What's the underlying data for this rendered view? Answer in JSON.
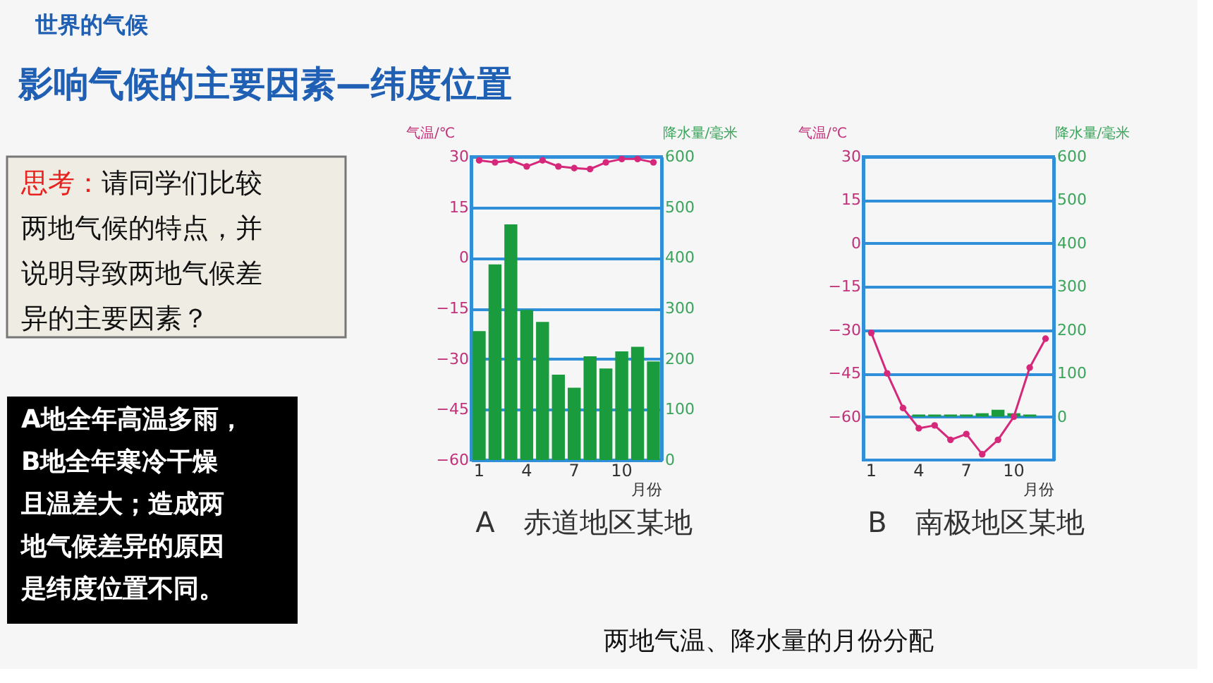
{
  "chart_data": [
    {
      "type": "other",
      "title": "世界的气候",
      "subtitle": "影响气候的主要因素—纬度位置",
      "annotations": [
        "思考：",
        "请同学们比较",
        "两地气候的特点，并",
        "说明导致两地气候差",
        "异的主要因素？"
      ]
    },
    {
      "type": "other",
      "annotations": [
        "A地全年高温多雨，",
        "B地全年寒冷干燥",
        "且温差大；造成两",
        "地气候差异的原因",
        "是纬度位置不同。"
      ]
    },
    {
      "type": "bar",
      "categories": [
        "1",
        null,
        null,
        "4",
        null,
        null,
        "7",
        null,
        null,
        "10",
        null,
        null
      ],
      "xlabel": "月份",
      "ylabel": "气温/℃",
      "y2label": "降水量/毫米",
      "ylim": [
        -60,
        30
      ],
      "yticks": [
        -60,
        -45,
        -30,
        -15,
        0,
        15,
        30
      ],
      "y2lim": [
        0,
        600
      ],
      "y2ticks": [
        0,
        100,
        200,
        300,
        400,
        500,
        600
      ],
      "grid": "y",
      "marker": "circle",
      "annotations": [
        "A　赤道地区某地"
      ],
      "series": [
        {
          "type": "bar",
          "axis": "y2",
          "color": "#1a9c3e",
          "values": [
            255,
            387,
            466,
            297,
            273,
            169,
            143,
            205,
            181,
            215,
            224,
            195
          ]
        },
        {
          "type": "line",
          "axis": "y",
          "color": "#d6287a",
          "values": [
            28.9,
            28.3,
            28.9,
            27.1,
            28.9,
            27.1,
            26.6,
            26.3,
            28.3,
            29.3,
            29.3,
            28.3
          ]
        }
      ]
    },
    {
      "type": "bar",
      "categories": [
        "1",
        null,
        null,
        "4",
        null,
        null,
        "7",
        null,
        null,
        "10",
        null,
        null
      ],
      "xlabel": "月份",
      "ylabel": "气温/℃",
      "y2label": "降水量/毫米",
      "ylim": [
        -75,
        30
      ],
      "yticks": [
        -60,
        -45,
        -30,
        -15,
        0,
        15,
        30
      ],
      "y2lim": [
        -100,
        600
      ],
      "y2ticks": [
        0,
        100,
        200,
        300,
        400,
        500,
        600
      ],
      "grid": "y",
      "marker": "circle",
      "annotations": [
        "B　南极地区某地",
        "两地气温、降水量的月份分配"
      ],
      "series": [
        {
          "type": "bar",
          "axis": "y2",
          "color": "#1a9c3e",
          "values": [
            0,
            0,
            0,
            5,
            5,
            5,
            5,
            8,
            16,
            8,
            5,
            0
          ]
        },
        {
          "type": "line",
          "axis": "y",
          "color": "#d6287a",
          "values": [
            -31,
            -45,
            -57,
            -64,
            -63,
            -68,
            -66,
            -73,
            -68,
            -60,
            -43,
            -33
          ]
        }
      ]
    }
  ]
}
